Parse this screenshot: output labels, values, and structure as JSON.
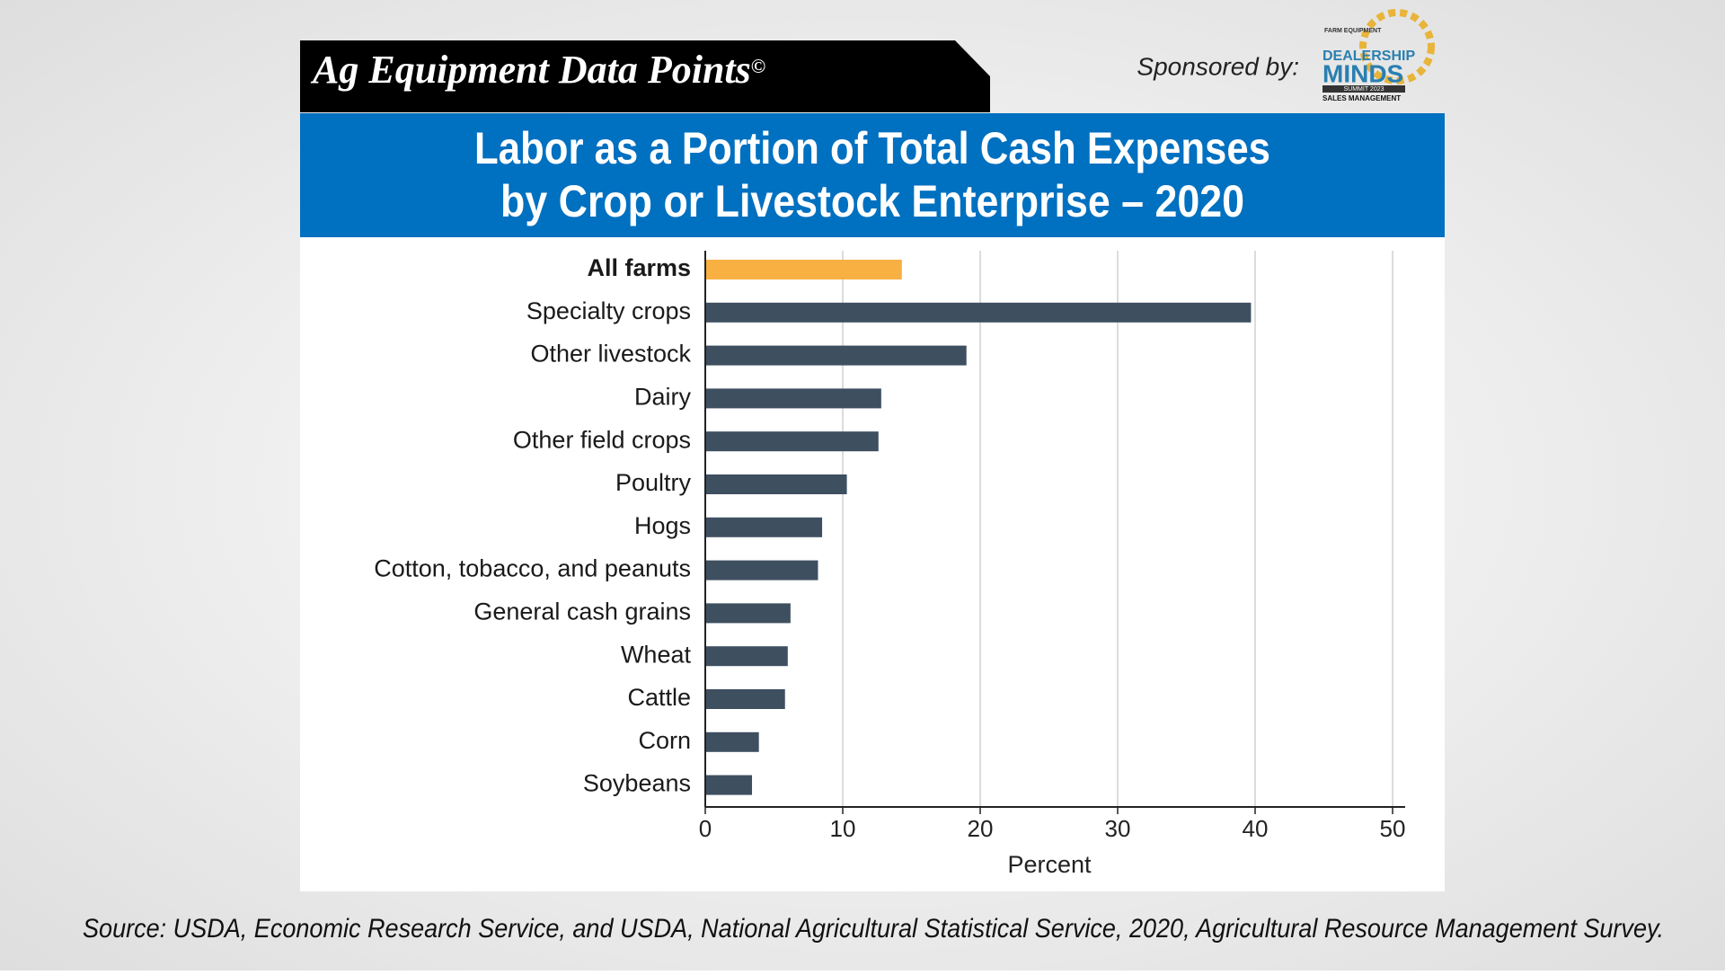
{
  "header": {
    "brand": "Ag Equipment Data Points",
    "copyright": "©",
    "sponsor_label": "Sponsored by:",
    "sponsor_logo": [
      "FARM EQUIPMENT",
      "DEALERSHIP",
      "MINDS",
      "SUMMIT 2023",
      "SALES MANAGEMENT"
    ]
  },
  "chart_data": {
    "type": "barh",
    "title": [
      "Labor as a Portion of Total Cash Expenses",
      "by Crop or Livestock Enterprise – 2020"
    ],
    "categories": [
      "All farms",
      "Specialty crops",
      "Other livestock",
      "Dairy",
      "Other field crops",
      "Poultry",
      "Hogs",
      "Cotton, tobacco, and peanuts",
      "General cash grains",
      "Wheat",
      "Cattle",
      "Corn",
      "Soybeans"
    ],
    "values": [
      14.3,
      39.7,
      19,
      12.8,
      12.6,
      10.3,
      8.5,
      8.2,
      6.2,
      6,
      5.8,
      3.9,
      3.4
    ],
    "colors": [
      "#f8b042",
      "#3e4f60",
      "#3e4f60",
      "#3e4f60",
      "#3e4f60",
      "#3e4f60",
      "#3e4f60",
      "#3e4f60",
      "#3e4f60",
      "#3e4f60",
      "#3e4f60",
      "#3e4f60",
      "#3e4f60"
    ],
    "xlabel": "Percent",
    "xlim": [
      0,
      50
    ],
    "xticks": [
      0,
      10,
      20,
      30,
      40,
      50
    ],
    "grid": true
  },
  "source": "Source: USDA, Economic Research Service, and USDA, National Agricultural Statistical Service, 2020, Agricultural Resource Management Survey."
}
